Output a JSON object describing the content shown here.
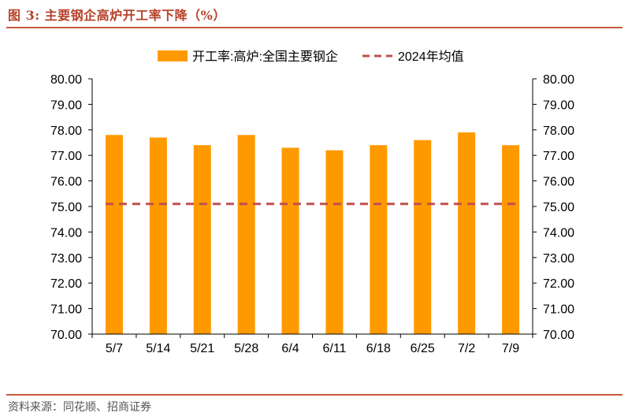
{
  "header": {
    "title": "图 3: 主要钢企高炉开工率下降（%）"
  },
  "footer": {
    "source": "资料来源：同花顺、招商证券"
  },
  "colors": {
    "bar": "#FF9900",
    "avg_line": "#C0504D",
    "rule": "#C45A3C",
    "title": "#B8412A"
  },
  "chart_data": {
    "type": "bar",
    "title": "",
    "categories": [
      "5/7",
      "5/14",
      "5/21",
      "5/28",
      "6/4",
      "6/11",
      "6/18",
      "6/25",
      "7/2",
      "7/9"
    ],
    "series": [
      {
        "name": "开工率:高炉:全国主要钢企",
        "type": "bar",
        "values": [
          77.8,
          77.7,
          77.4,
          77.8,
          77.3,
          77.2,
          77.4,
          77.6,
          77.9,
          77.4
        ]
      },
      {
        "name": "2024年均值",
        "type": "line",
        "style": "dashed",
        "values": [
          75.1,
          75.1,
          75.1,
          75.1,
          75.1,
          75.1,
          75.1,
          75.1,
          75.1,
          75.1
        ]
      }
    ],
    "ylim": [
      70,
      80
    ],
    "yticks": [
      "70.00",
      "71.00",
      "72.00",
      "73.00",
      "74.00",
      "75.00",
      "76.00",
      "77.00",
      "78.00",
      "79.00",
      "80.00"
    ],
    "y2ticks": [
      "70.00",
      "71.00",
      "72.00",
      "73.00",
      "74.00",
      "75.00",
      "76.00",
      "77.00",
      "78.00",
      "79.00",
      "80.00"
    ],
    "legend_position": "top-center",
    "grid": false
  }
}
